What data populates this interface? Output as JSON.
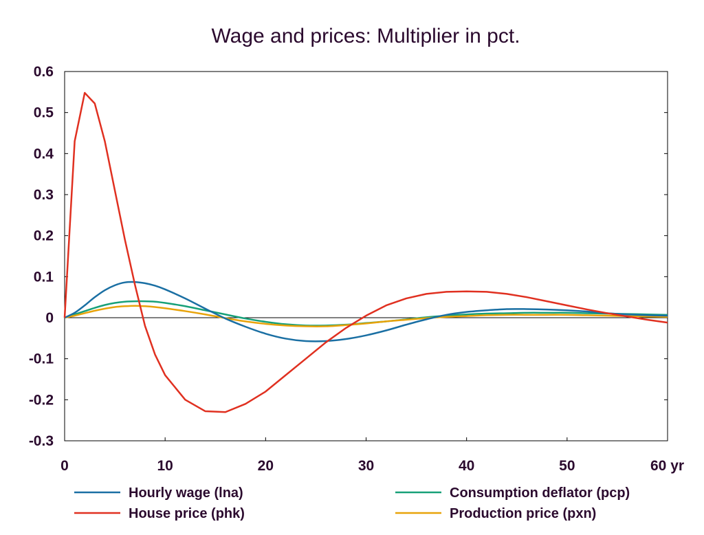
{
  "chart_data": {
    "type": "line",
    "title": "Wage and prices: Multiplier in pct.",
    "xlabel": "",
    "ylabel": "",
    "x_unit_label": "yr",
    "xlim": [
      0,
      60
    ],
    "ylim": [
      -0.3,
      0.6
    ],
    "x_ticks": [
      0,
      10,
      20,
      30,
      40,
      50,
      60
    ],
    "x_tick_labels": [
      "0",
      "10",
      "20",
      "30",
      "40",
      "50",
      "60 yr"
    ],
    "y_ticks": [
      -0.3,
      -0.2,
      -0.1,
      0,
      0.1,
      0.2,
      0.3,
      0.4,
      0.5,
      0.6
    ],
    "y_tick_labels": [
      "-0.3",
      "-0.2",
      "-0.1",
      "0",
      "0.1",
      "0.2",
      "0.3",
      "0.4",
      "0.5",
      "0.6"
    ],
    "grid": false,
    "zero_line": true,
    "legend_position": "bottom",
    "series": [
      {
        "name": "Hourly wage (lna)",
        "color": "#1a6fa3",
        "x": [
          0,
          1,
          2,
          3,
          4,
          5,
          6,
          7,
          8,
          9,
          10,
          12,
          14,
          16,
          18,
          20,
          22,
          24,
          26,
          28,
          30,
          32,
          34,
          36,
          38,
          40,
          42,
          44,
          46,
          48,
          50,
          52,
          54,
          56,
          58,
          60
        ],
        "values": [
          0,
          0.012,
          0.03,
          0.05,
          0.067,
          0.079,
          0.086,
          0.087,
          0.084,
          0.078,
          0.069,
          0.047,
          0.022,
          -0.002,
          -0.022,
          -0.039,
          -0.051,
          -0.057,
          -0.057,
          -0.052,
          -0.043,
          -0.031,
          -0.017,
          -0.004,
          0.007,
          0.014,
          0.018,
          0.021,
          0.021,
          0.02,
          0.018,
          0.015,
          0.011,
          0.008,
          0.006,
          0.005
        ]
      },
      {
        "name": "House price (phk)",
        "color": "#e03020",
        "x": [
          0,
          1,
          2,
          3,
          4,
          5,
          6,
          7,
          8,
          9,
          10,
          12,
          14,
          16,
          18,
          20,
          22,
          24,
          26,
          28,
          30,
          32,
          34,
          36,
          38,
          40,
          42,
          44,
          46,
          48,
          50,
          52,
          54,
          56,
          58,
          60
        ],
        "values": [
          0,
          0.43,
          0.548,
          0.522,
          0.43,
          0.31,
          0.19,
          0.08,
          -0.02,
          -0.09,
          -0.14,
          -0.2,
          -0.228,
          -0.23,
          -0.21,
          -0.18,
          -0.14,
          -0.1,
          -0.06,
          -0.025,
          0.005,
          0.03,
          0.047,
          0.058,
          0.063,
          0.064,
          0.063,
          0.058,
          0.05,
          0.04,
          0.03,
          0.02,
          0.011,
          0.003,
          -0.005,
          -0.012
        ]
      },
      {
        "name": "Consumption deflator (pcp)",
        "color": "#17a078",
        "x": [
          0,
          1,
          2,
          3,
          4,
          5,
          6,
          7,
          8,
          9,
          10,
          12,
          14,
          16,
          18,
          20,
          22,
          24,
          26,
          28,
          30,
          32,
          34,
          36,
          38,
          40,
          42,
          44,
          46,
          48,
          50,
          52,
          54,
          56,
          58,
          60
        ],
        "values": [
          0,
          0.008,
          0.016,
          0.024,
          0.031,
          0.036,
          0.039,
          0.04,
          0.04,
          0.039,
          0.036,
          0.028,
          0.018,
          0.008,
          -0.002,
          -0.01,
          -0.016,
          -0.019,
          -0.019,
          -0.017,
          -0.013,
          -0.009,
          -0.004,
          0.001,
          0.005,
          0.008,
          0.01,
          0.011,
          0.012,
          0.012,
          0.012,
          0.011,
          0.01,
          0.009,
          0.008,
          0.007
        ]
      },
      {
        "name": "Production price (pxn)",
        "color": "#e8a30a",
        "x": [
          0,
          1,
          2,
          3,
          4,
          5,
          6,
          7,
          8,
          9,
          10,
          12,
          14,
          16,
          18,
          20,
          22,
          24,
          26,
          28,
          30,
          32,
          34,
          36,
          38,
          40,
          42,
          44,
          46,
          48,
          50,
          52,
          54,
          56,
          58,
          60
        ],
        "values": [
          0,
          0.005,
          0.011,
          0.017,
          0.022,
          0.026,
          0.028,
          0.029,
          0.028,
          0.026,
          0.023,
          0.016,
          0.008,
          -0.001,
          -0.009,
          -0.015,
          -0.019,
          -0.021,
          -0.021,
          -0.018,
          -0.014,
          -0.009,
          -0.005,
          -0.001,
          0.002,
          0.004,
          0.006,
          0.007,
          0.007,
          0.007,
          0.007,
          0.006,
          0.005,
          0.004,
          0.003,
          0.002
        ]
      }
    ]
  }
}
